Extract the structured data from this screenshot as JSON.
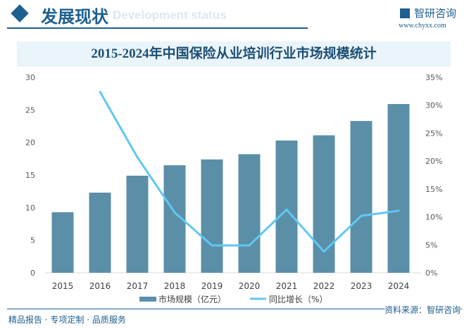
{
  "header": {
    "title": "发展现状",
    "subtitle": "Development status",
    "brand": "智研咨询",
    "site": "www.chyxx.com"
  },
  "footer": {
    "left": "精品报告 · 专项定制 · 品质服务",
    "source": "资料来源：智研咨询"
  },
  "colors": {
    "bar": "#5b8fa8",
    "line": "#5ec8f2",
    "accent": "#1d5f8f"
  },
  "chart_data": {
    "type": "bar+line",
    "title": "2015-2024年中国保险从业培训行业市场规模统计",
    "categories": [
      "2015",
      "2016",
      "2017",
      "2018",
      "2019",
      "2020",
      "2021",
      "2022",
      "2023",
      "2024"
    ],
    "series": [
      {
        "name": "市场规模（亿元）",
        "type": "bar",
        "axis": "left",
        "values": [
          9.3,
          12.3,
          14.9,
          16.5,
          17.4,
          18.2,
          20.3,
          21.1,
          23.3,
          25.9
        ]
      },
      {
        "name": "同比增长（%）",
        "type": "line",
        "axis": "right",
        "values": [
          null,
          32.4,
          20.7,
          10.8,
          4.9,
          4.9,
          11.3,
          3.8,
          10.2,
          11.1
        ]
      }
    ],
    "yleft": {
      "ticks": [
        "0",
        "5",
        "10",
        "15",
        "20",
        "25",
        "30"
      ],
      "ylim": [
        0,
        30
      ]
    },
    "yright": {
      "ticks": [
        "0%",
        "5%",
        "10%",
        "15%",
        "20%",
        "25%",
        "30%",
        "35%"
      ],
      "ylim": [
        0,
        35
      ]
    },
    "legend": "bottom",
    "grid": false
  }
}
